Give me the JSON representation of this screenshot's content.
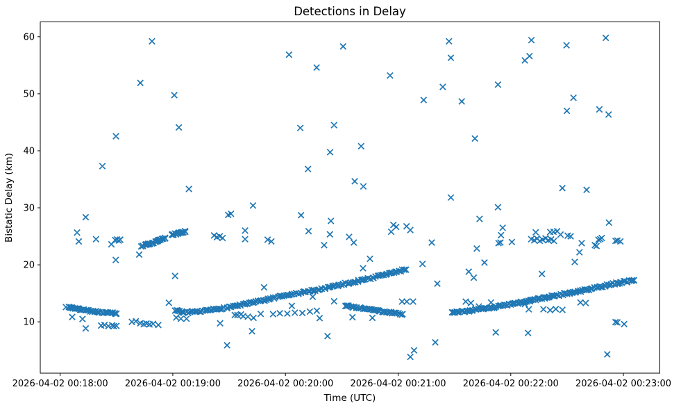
{
  "figure": {
    "title": "Detections in Delay",
    "xlabel": "Time (UTC)",
    "ylabel": "Bistatic Delay (km)",
    "background_color": "#ffffff",
    "marker_color": "#1f77b4",
    "spine_color": "#000000"
  },
  "chart_data": {
    "type": "scatter",
    "marker": "x",
    "title": "Detections in Delay",
    "xlabel": "Time (UTC)",
    "ylabel": "Bistatic Delay (km)",
    "x_unit": "seconds after 2026-04-02 00:18:00 UTC",
    "xlim_seconds": [
      -10.6,
      319.4
    ],
    "ylim": [
      1.0,
      62.6
    ],
    "grid": false,
    "legend": "none",
    "x_ticks": [
      {
        "t": 0,
        "label": "2026-04-02 00:18:00"
      },
      {
        "t": 60,
        "label": "2026-04-02 00:19:00"
      },
      {
        "t": 120,
        "label": "2026-04-02 00:20:00"
      },
      {
        "t": 180,
        "label": "2026-04-02 00:21:00"
      },
      {
        "t": 240,
        "label": "2026-04-02 00:22:00"
      },
      {
        "t": 300,
        "label": "2026-04-02 00:23:00"
      }
    ],
    "y_ticks": [
      {
        "v": 10,
        "label": "10"
      },
      {
        "v": 20,
        "label": "20"
      },
      {
        "v": 30,
        "label": "30"
      },
      {
        "v": 40,
        "label": "40"
      },
      {
        "v": 50,
        "label": "50"
      },
      {
        "v": 60,
        "label": "60"
      }
    ],
    "jitter_seed": 7,
    "tracks": [
      {
        "name": "track-descending-00:18",
        "n": 40,
        "jitter": 0.1,
        "anchors": [
          [
            3.5,
            12.68
          ],
          [
            7,
            12.42
          ],
          [
            11,
            12.15
          ],
          [
            15,
            11.95
          ],
          [
            19,
            11.78
          ],
          [
            23,
            11.62
          ],
          [
            26.5,
            11.55
          ],
          [
            30,
            11.48
          ]
        ]
      },
      {
        "name": "track-rising-00:19-00:21",
        "n": 140,
        "jitter": 0.14,
        "anchors": [
          [
            61,
            11.95
          ],
          [
            65,
            11.78
          ],
          [
            69,
            11.68
          ],
          [
            73,
            11.72
          ],
          [
            78,
            11.95
          ],
          [
            82,
            12.2
          ],
          [
            88,
            12.45
          ],
          [
            94,
            12.85
          ],
          [
            100,
            13.2
          ],
          [
            106,
            13.6
          ],
          [
            112,
            14.05
          ],
          [
            118,
            14.45
          ],
          [
            124,
            14.85
          ],
          [
            131,
            15.25
          ],
          [
            138,
            15.7
          ],
          [
            145,
            16.2
          ],
          [
            152,
            16.7
          ],
          [
            159,
            17.2
          ],
          [
            166,
            17.7
          ],
          [
            173,
            18.3
          ],
          [
            178,
            18.65
          ],
          [
            184,
            19.2
          ]
        ]
      },
      {
        "name": "track-low-descending-00:20:30",
        "n": 42,
        "jitter": 0.13,
        "anchors": [
          [
            151.5,
            12.9
          ],
          [
            157,
            12.55
          ],
          [
            163,
            12.25
          ],
          [
            169,
            11.95
          ],
          [
            175,
            11.7
          ],
          [
            179,
            11.45
          ],
          [
            182.5,
            11.3
          ]
        ]
      },
      {
        "name": "track-rising-00:21:30-00:23",
        "n": 135,
        "jitter": 0.14,
        "anchors": [
          [
            208.5,
            11.65
          ],
          [
            214,
            11.8
          ],
          [
            220,
            12.05
          ],
          [
            226,
            12.3
          ],
          [
            232,
            12.6
          ],
          [
            238,
            12.95
          ],
          [
            244,
            13.3
          ],
          [
            250,
            13.7
          ],
          [
            256,
            14.1
          ],
          [
            262,
            14.5
          ],
          [
            268,
            14.85
          ],
          [
            274,
            15.2
          ],
          [
            280,
            15.6
          ],
          [
            286,
            16.0
          ],
          [
            291,
            16.4
          ],
          [
            296,
            16.75
          ],
          [
            300,
            17.0
          ],
          [
            303.5,
            17.15
          ],
          [
            306,
            17.3
          ]
        ]
      },
      {
        "name": "track-short-rising-24km",
        "n": 28,
        "jitter": 0.11,
        "anchors": [
          [
            43.5,
            23.3
          ],
          [
            46,
            23.55
          ],
          [
            49,
            23.85
          ],
          [
            52,
            24.2
          ],
          [
            54,
            24.45
          ],
          [
            56.3,
            24.7
          ]
        ]
      },
      {
        "name": "cluster-26km-00:19",
        "n": 20,
        "jitter": 0.12,
        "anchors": [
          [
            59.3,
            25.25
          ],
          [
            61.5,
            25.4
          ],
          [
            63.5,
            25.55
          ],
          [
            65,
            25.7
          ],
          [
            66.8,
            25.9
          ]
        ]
      }
    ],
    "noise_points": [
      [
        6.4,
        10.85
      ],
      [
        11.9,
        10.5
      ],
      [
        13.6,
        8.85
      ],
      [
        21.8,
        9.35
      ],
      [
        23.6,
        9.45
      ],
      [
        25.7,
        9.25
      ],
      [
        27.7,
        9.4
      ],
      [
        28.6,
        9.25
      ],
      [
        30,
        9.3
      ],
      [
        38.2,
        10.0
      ],
      [
        40.3,
        10.1
      ],
      [
        42.7,
        9.75
      ],
      [
        44.5,
        9.6
      ],
      [
        46,
        9.7
      ],
      [
        47.6,
        9.55
      ],
      [
        49.5,
        9.65
      ],
      [
        52.3,
        9.45
      ],
      [
        57.9,
        13.35
      ],
      [
        9,
        25.65
      ],
      [
        9.9,
        24.1
      ],
      [
        19.1,
        24.5
      ],
      [
        27.3,
        23.6
      ],
      [
        29.3,
        24.35
      ],
      [
        30.3,
        24.45
      ],
      [
        31.2,
        24.25
      ],
      [
        32,
        24.4
      ],
      [
        29.6,
        20.85
      ],
      [
        42.1,
        21.8
      ],
      [
        13.6,
        28.35
      ],
      [
        22.5,
        37.3
      ],
      [
        29.7,
        42.55
      ],
      [
        42.7,
        51.9
      ],
      [
        48.9,
        59.2
      ],
      [
        60.8,
        49.75
      ],
      [
        63.2,
        44.1
      ],
      [
        68.6,
        33.3
      ],
      [
        61.2,
        18.05
      ],
      [
        61.8,
        10.75
      ],
      [
        64.3,
        10.55
      ],
      [
        67.3,
        10.55
      ],
      [
        82,
        25.15
      ],
      [
        83.5,
        24.85
      ],
      [
        85,
        25.0
      ],
      [
        86.5,
        24.7
      ],
      [
        85.2,
        9.75
      ],
      [
        88.9,
        5.9
      ],
      [
        89.5,
        28.75
      ],
      [
        91,
        28.95
      ],
      [
        98.5,
        26.0
      ],
      [
        98.5,
        24.5
      ],
      [
        102.2,
        8.35
      ],
      [
        102.7,
        30.4
      ],
      [
        93,
        11.2
      ],
      [
        94.4,
        11.2
      ],
      [
        96.3,
        11.3
      ],
      [
        97.5,
        11.0
      ],
      [
        100,
        10.9
      ],
      [
        103,
        10.7
      ],
      [
        106.8,
        11.4
      ],
      [
        108.6,
        16.05
      ],
      [
        110.5,
        24.4
      ],
      [
        112.5,
        24.1
      ],
      [
        113.4,
        11.35
      ],
      [
        117,
        11.5
      ],
      [
        121,
        11.45
      ],
      [
        125,
        11.6
      ],
      [
        129,
        11.55
      ],
      [
        133,
        11.8
      ],
      [
        136.7,
        11.95
      ],
      [
        121.9,
        56.85
      ],
      [
        123.4,
        12.8
      ],
      [
        128.3,
        28.7
      ],
      [
        132.3,
        25.9
      ],
      [
        132,
        36.8
      ],
      [
        127.9,
        44.0
      ],
      [
        136.6,
        54.6
      ],
      [
        138.2,
        10.65
      ],
      [
        134.5,
        14.4
      ],
      [
        142.4,
        7.5
      ],
      [
        143.8,
        39.75
      ],
      [
        144.2,
        27.7
      ],
      [
        143.7,
        25.35
      ],
      [
        140.6,
        23.45
      ],
      [
        145.9,
        44.5
      ],
      [
        145.9,
        13.6
      ],
      [
        150.7,
        58.3
      ],
      [
        153.9,
        24.9
      ],
      [
        156.4,
        23.9
      ],
      [
        155.7,
        10.8
      ],
      [
        166.3,
        10.7
      ],
      [
        156.9,
        34.65
      ],
      [
        161.5,
        33.75
      ],
      [
        160.3,
        40.8
      ],
      [
        161.3,
        19.4
      ],
      [
        165,
        21.05
      ],
      [
        175.7,
        53.2
      ],
      [
        176.3,
        25.8
      ],
      [
        177.5,
        27.0
      ],
      [
        179,
        26.65
      ],
      [
        184.5,
        26.75
      ],
      [
        186.5,
        26.1
      ],
      [
        182.1,
        13.55
      ],
      [
        184.6,
        13.55
      ],
      [
        188,
        13.55
      ],
      [
        186.5,
        3.85
      ],
      [
        188.5,
        5.0
      ],
      [
        193,
        20.15
      ],
      [
        193.6,
        48.9
      ],
      [
        197.9,
        23.9
      ],
      [
        200.9,
        16.7
      ],
      [
        199.8,
        6.4
      ],
      [
        203.8,
        51.2
      ],
      [
        207.1,
        59.2
      ],
      [
        208.1,
        56.3
      ],
      [
        208.1,
        31.8
      ],
      [
        213.9,
        48.65
      ],
      [
        217.6,
        18.8
      ],
      [
        220.3,
        17.75
      ],
      [
        220.9,
        42.15
      ],
      [
        221.9,
        22.85
      ],
      [
        223.4,
        28.05
      ],
      [
        226,
        20.4
      ],
      [
        229.5,
        13.4
      ],
      [
        216,
        13.55
      ],
      [
        218.8,
        13.3
      ],
      [
        223,
        12.7
      ],
      [
        232,
        8.15
      ],
      [
        249.2,
        8.05
      ],
      [
        233.2,
        51.6
      ],
      [
        233.2,
        30.1
      ],
      [
        233.5,
        23.8
      ],
      [
        234.5,
        23.9
      ],
      [
        235.7,
        26.5
      ],
      [
        234.8,
        25.2
      ],
      [
        240.6,
        24.0
      ],
      [
        247.5,
        55.85
      ],
      [
        250,
        56.6
      ],
      [
        251,
        59.4
      ],
      [
        253.3,
        25.7
      ],
      [
        250.9,
        24.5
      ],
      [
        252.5,
        24.3
      ],
      [
        254,
        24.6
      ],
      [
        255.5,
        24.2
      ],
      [
        257,
        24.4
      ],
      [
        258.5,
        24.65
      ],
      [
        260,
        24.3
      ],
      [
        261.5,
        24.45
      ],
      [
        263,
        24.2
      ],
      [
        261,
        25.75
      ],
      [
        262.8,
        25.8
      ],
      [
        264.7,
        25.9
      ],
      [
        266.5,
        25.3
      ],
      [
        270.3,
        25.1
      ],
      [
        247.5,
        13.1
      ],
      [
        249.6,
        12.2
      ],
      [
        256.6,
        18.4
      ],
      [
        257.4,
        12.2
      ],
      [
        261,
        12.05
      ],
      [
        264,
        12.25
      ],
      [
        267.5,
        12.1
      ],
      [
        267.5,
        33.45
      ],
      [
        280.4,
        33.15
      ],
      [
        269.7,
        58.5
      ],
      [
        269.9,
        47.0
      ],
      [
        271.9,
        25.0
      ],
      [
        273.4,
        49.3
      ],
      [
        274.1,
        20.5
      ],
      [
        276.6,
        22.2
      ],
      [
        277.1,
        13.4
      ],
      [
        279.9,
        13.3
      ],
      [
        277.8,
        23.8
      ],
      [
        284.8,
        23.45
      ],
      [
        285.7,
        23.3
      ],
      [
        286.7,
        24.4
      ],
      [
        287.7,
        24.5
      ],
      [
        288.5,
        24.7
      ],
      [
        287.2,
        47.25
      ],
      [
        292.1,
        46.35
      ],
      [
        290.6,
        59.8
      ],
      [
        292.3,
        27.4
      ],
      [
        295.8,
        24.2
      ],
      [
        296.8,
        24.25
      ],
      [
        298.4,
        24.1
      ],
      [
        295.8,
        9.95
      ],
      [
        296.8,
        9.9
      ],
      [
        300.4,
        9.6
      ],
      [
        291.4,
        4.3
      ]
    ]
  }
}
